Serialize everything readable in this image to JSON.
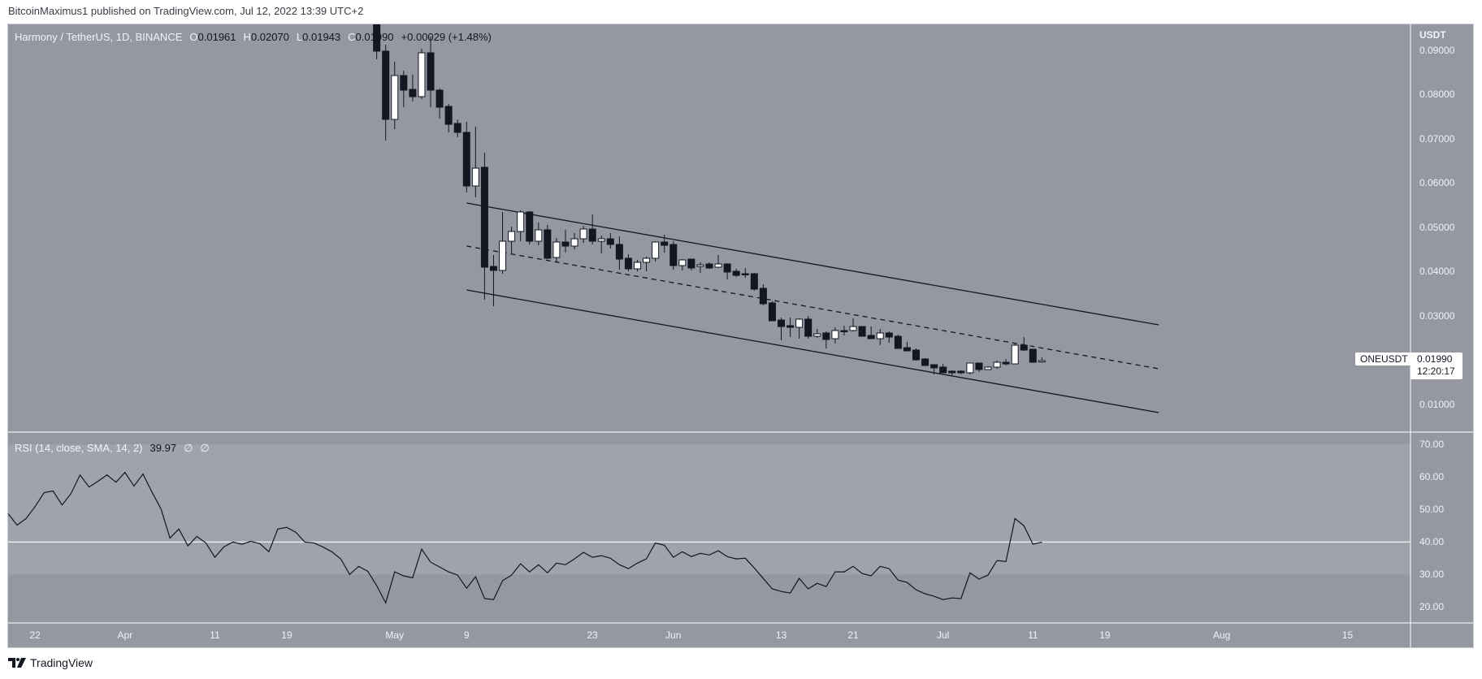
{
  "header": {
    "published": "BitcoinMaximus1 published on TradingView.com, Jul 12, 2022 13:39 UTC+2"
  },
  "legend": {
    "title": "Harmony / TetherUS, 1D, BINANCE",
    "o_label": "O",
    "o_value": "0.01961",
    "h_label": "H",
    "h_value": "0.02070",
    "l_label": "L",
    "l_value": "0.01943",
    "c_label": "C",
    "c_value": "0.01990",
    "change": "+0.00029 (+1.48%)"
  },
  "rsi_legend": {
    "title": "RSI (14, close, SMA, 14, 2)",
    "value": "39.97",
    "na1": "∅",
    "na2": "∅"
  },
  "price_tag": {
    "symbol": "ONEUSDT",
    "price": "0.01990",
    "countdown": "12:20:17"
  },
  "footer": {
    "brand": "TradingView",
    "logo_icon": "tradingview-logo-icon"
  },
  "colors": {
    "background": "#9598a1",
    "rsi_band": "#a0a3ab",
    "bear": "#131722",
    "bull": "#ffffff",
    "axis_text": "#f0f3fa",
    "line": "#131722",
    "level_line": "#ffffff"
  },
  "chart_data": [
    {
      "type": "candlestick",
      "title": "Harmony / TetherUS, 1D, BINANCE",
      "ylabel": "USDT",
      "xlim": [
        "2022-03-19",
        "2022-08-22"
      ],
      "ylim": [
        0.00376,
        0.09587
      ],
      "y_ticks": [
        {
          "v": 0.09,
          "label": "0.09000"
        },
        {
          "v": 0.08,
          "label": "0.08000"
        },
        {
          "v": 0.07,
          "label": "0.07000"
        },
        {
          "v": 0.06,
          "label": "0.06000"
        },
        {
          "v": 0.05,
          "label": "0.05000"
        },
        {
          "v": 0.04,
          "label": "0.04000"
        },
        {
          "v": 0.03,
          "label": "0.03000"
        },
        {
          "v": 0.01,
          "label": "0.01000"
        }
      ],
      "x_ticks": [
        {
          "date": "2022-03-22",
          "label": "22"
        },
        {
          "date": "2022-04-01",
          "label": "Apr"
        },
        {
          "date": "2022-04-11",
          "label": "11"
        },
        {
          "date": "2022-04-19",
          "label": "19"
        },
        {
          "date": "2022-05-01",
          "label": "May"
        },
        {
          "date": "2022-05-09",
          "label": "9"
        },
        {
          "date": "2022-05-23",
          "label": "23"
        },
        {
          "date": "2022-06-01",
          "label": "Jun"
        },
        {
          "date": "2022-06-13",
          "label": "13"
        },
        {
          "date": "2022-06-21",
          "label": "21"
        },
        {
          "date": "2022-07-01",
          "label": "Jul"
        },
        {
          "date": "2022-07-11",
          "label": "11"
        },
        {
          "date": "2022-07-19",
          "label": "19"
        },
        {
          "date": "2022-08-01",
          "label": "Aug"
        },
        {
          "date": "2022-08-15",
          "label": "15"
        }
      ],
      "candles_start": "2022-04-29",
      "ohlc_fields": [
        "open",
        "high",
        "low",
        "close"
      ],
      "ohlc": [
        [
          0.09771,
          0.09863,
          0.08798,
          0.08982
        ],
        [
          0.08982,
          0.09128,
          0.06963,
          0.0744
        ],
        [
          0.0744,
          0.08743,
          0.0722,
          0.08431
        ],
        [
          0.08431,
          0.08541,
          0.07716,
          0.08101
        ],
        [
          0.08119,
          0.0845,
          0.07844,
          0.07954
        ],
        [
          0.07954,
          0.09037,
          0.07899,
          0.08945
        ],
        [
          0.08945,
          0.09312,
          0.07716,
          0.08101
        ],
        [
          0.08101,
          0.08138,
          0.07459,
          0.07716
        ],
        [
          0.07734,
          0.07789,
          0.07147,
          0.0733
        ],
        [
          0.07349,
          0.0744,
          0.07037,
          0.07147
        ],
        [
          0.07147,
          0.07385,
          0.05789,
          0.05936
        ],
        [
          0.05936,
          0.07275,
          0.05679,
          0.06339
        ],
        [
          0.06358,
          0.06688,
          0.03367,
          0.04101
        ],
        [
          0.04119,
          0.04376,
          0.0322,
          0.04028
        ],
        [
          0.04028,
          0.05349,
          0.03954,
          0.04688
        ],
        [
          0.04688,
          0.05018,
          0.04394,
          0.04908
        ],
        [
          0.04908,
          0.05385,
          0.04688,
          0.05349
        ],
        [
          0.05349,
          0.05367,
          0.04615,
          0.04688
        ],
        [
          0.04688,
          0.0511,
          0.04596,
          0.04945
        ],
        [
          0.04945,
          0.05055,
          0.04284,
          0.04303
        ],
        [
          0.04321,
          0.04761,
          0.04211,
          0.0467
        ],
        [
          0.0467,
          0.04945,
          0.04431,
          0.04578
        ],
        [
          0.04578,
          0.04872,
          0.04505,
          0.04743
        ],
        [
          0.04743,
          0.05037,
          0.04651,
          0.04963
        ],
        [
          0.04963,
          0.05294,
          0.04615,
          0.04688
        ],
        [
          0.04688,
          0.04817,
          0.04413,
          0.04743
        ],
        [
          0.04743,
          0.04872,
          0.04523,
          0.04615
        ],
        [
          0.04615,
          0.04798,
          0.04046,
          0.04284
        ],
        [
          0.04303,
          0.04394,
          0.04009,
          0.04064
        ],
        [
          0.04064,
          0.04266,
          0.04009,
          0.04211
        ],
        [
          0.04211,
          0.04339,
          0.04009,
          0.04303
        ],
        [
          0.04303,
          0.04688,
          0.04229,
          0.0467
        ],
        [
          0.0467,
          0.04835,
          0.04431,
          0.04596
        ],
        [
          0.04615,
          0.04688,
          0.04046,
          0.04138
        ],
        [
          0.04138,
          0.04284,
          0.04028,
          0.04266
        ],
        [
          0.04284,
          0.04284,
          0.04028,
          0.04083
        ],
        [
          0.04119,
          0.04211,
          0.03972,
          0.04156
        ],
        [
          0.04174,
          0.04211,
          0.04064,
          0.04083
        ],
        [
          0.04101,
          0.04376,
          0.04083,
          0.04174
        ],
        [
          0.04174,
          0.04193,
          0.03826,
          0.03991
        ],
        [
          0.04009,
          0.04064,
          0.03881,
          0.03917
        ],
        [
          0.03954,
          0.04083,
          0.03862,
          0.03936
        ],
        [
          0.03954,
          0.03972,
          0.03569,
          0.03606
        ],
        [
          0.03624,
          0.03716,
          0.03239,
          0.03275
        ],
        [
          0.03294,
          0.0333,
          0.0289,
          0.0289
        ],
        [
          0.02908,
          0.02963,
          0.0245,
          0.02761
        ],
        [
          0.0278,
          0.02963,
          0.02523,
          0.02743
        ],
        [
          0.02743,
          0.02945,
          0.02486,
          0.02927
        ],
        [
          0.02927,
          0.03,
          0.02486,
          0.02541
        ],
        [
          0.02541,
          0.02706,
          0.02505,
          0.02596
        ],
        [
          0.02615,
          0.02651,
          0.02266,
          0.02468
        ],
        [
          0.02486,
          0.02743,
          0.02376,
          0.0267
        ],
        [
          0.0267,
          0.0278,
          0.0256,
          0.02651
        ],
        [
          0.0267,
          0.02945,
          0.02651,
          0.02761
        ],
        [
          0.02761,
          0.02761,
          0.02541,
          0.02541
        ],
        [
          0.0256,
          0.02761,
          0.02486,
          0.02486
        ],
        [
          0.02486,
          0.02706,
          0.02339,
          0.02615
        ],
        [
          0.02615,
          0.02651,
          0.02394,
          0.02523
        ],
        [
          0.02541,
          0.02578,
          0.02266,
          0.02266
        ],
        [
          0.02284,
          0.02413,
          0.02211,
          0.02211
        ],
        [
          0.02229,
          0.02266,
          0.01991,
          0.02009
        ],
        [
          0.02028,
          0.02046,
          0.01881,
          0.01881
        ],
        [
          0.01899,
          0.01899,
          0.01679,
          0.01826
        ],
        [
          0.01844,
          0.01917,
          0.01716,
          0.01716
        ],
        [
          0.01752,
          0.01771,
          0.01661,
          0.01716
        ],
        [
          0.01752,
          0.01771,
          0.01679,
          0.01716
        ],
        [
          0.01716,
          0.01936,
          0.01679,
          0.01936
        ],
        [
          0.01936,
          0.01936,
          0.01734,
          0.01789
        ],
        [
          0.01789,
          0.01862,
          0.01789,
          0.01844
        ],
        [
          0.01844,
          0.01991,
          0.01807,
          0.01954
        ],
        [
          0.01954,
          0.02028,
          0.01881,
          0.01917
        ],
        [
          0.01917,
          0.02376,
          0.01917,
          0.02339
        ],
        [
          0.02339,
          0.02523,
          0.02211,
          0.02229
        ],
        [
          0.02248,
          0.02248,
          0.01954,
          0.01954
        ],
        [
          0.01961,
          0.0207,
          0.01943,
          0.0199
        ]
      ],
      "trendlines": [
        {
          "name": "channel-upper",
          "style": "solid",
          "from": {
            "date": "2022-05-09",
            "price": 0.0555
          },
          "to": {
            "date": "2022-07-25",
            "price": 0.02798
          }
        },
        {
          "name": "channel-middle",
          "style": "dashed",
          "from": {
            "date": "2022-05-09",
            "price": 0.04578
          },
          "to": {
            "date": "2022-07-25",
            "price": 0.01807
          }
        },
        {
          "name": "channel-lower",
          "style": "solid",
          "from": {
            "date": "2022-05-09",
            "price": 0.03587
          },
          "to": {
            "date": "2022-07-25",
            "price": 0.00817
          }
        }
      ]
    },
    {
      "type": "line",
      "title": "RSI (14, close, SMA, 14, 2)",
      "xlim": [
        "2022-03-19",
        "2022-08-22"
      ],
      "ylim": [
        15.1,
        73.8
      ],
      "band": [
        30,
        70
      ],
      "level_line": 40,
      "y_ticks": [
        {
          "v": 70,
          "label": "70.00"
        },
        {
          "v": 60,
          "label": "60.00"
        },
        {
          "v": 50,
          "label": "50.00"
        },
        {
          "v": 40,
          "label": "40.00"
        },
        {
          "v": 30,
          "label": "30.00"
        },
        {
          "v": 20,
          "label": "20.00"
        }
      ],
      "start": "2022-03-19",
      "values": [
        48.7,
        45.2,
        47.2,
        50.9,
        55.2,
        55.7,
        51.4,
        54.9,
        60.6,
        56.9,
        58.7,
        60.6,
        58.4,
        61.4,
        57.2,
        60.9,
        55.4,
        50.2,
        41.2,
        44.0,
        38.8,
        41.7,
        39.7,
        35.3,
        38.5,
        40.0,
        39.3,
        40.2,
        39.5,
        37.0,
        44.0,
        44.5,
        43.0,
        40.0,
        39.7,
        38.5,
        37.0,
        34.8,
        30.0,
        32.5,
        31.0,
        26.6,
        21.3,
        30.8,
        29.6,
        29.0,
        37.8,
        33.8,
        32.3,
        30.8,
        29.8,
        25.8,
        29.3,
        22.6,
        22.3,
        28.1,
        29.8,
        33.3,
        30.8,
        33.0,
        30.5,
        33.5,
        33.0,
        34.8,
        36.8,
        35.3,
        35.8,
        35.0,
        33.0,
        31.8,
        33.5,
        34.8,
        39.7,
        39.0,
        35.3,
        37.0,
        35.5,
        36.5,
        36.0,
        37.3,
        35.5,
        34.8,
        35.0,
        32.0,
        28.8,
        25.6,
        24.8,
        24.3,
        28.8,
        25.6,
        27.3,
        26.3,
        30.8,
        30.8,
        32.5,
        30.3,
        29.6,
        32.5,
        31.8,
        28.3,
        27.6,
        25.3,
        24.1,
        23.3,
        22.3,
        22.8,
        22.6,
        30.5,
        28.6,
        29.8,
        34.3,
        34.0,
        47.2,
        45.0,
        39.3,
        39.97
      ]
    }
  ]
}
